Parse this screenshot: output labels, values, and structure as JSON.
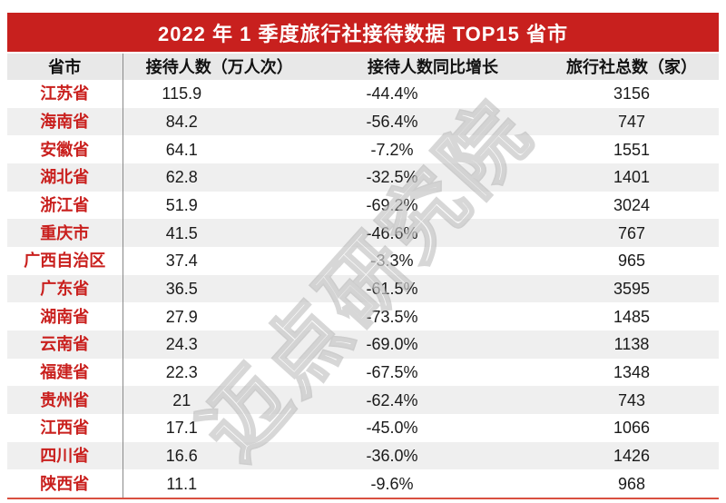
{
  "title": "2022 年 1 季度旅行社接待数据 TOP15 省市",
  "watermark": "迈点研究院",
  "colors": {
    "header_bar_red": "#c8201e",
    "province_text_red": "#c9201e",
    "bottom_line_red": "#d94f3f",
    "header_row_bg": "#e8e8e8",
    "stripe_row_bg": "#efefef",
    "divider_gray": "#8a8a8a",
    "value_text": "#1a1a1a"
  },
  "table": {
    "columns": [
      "省市",
      "接待人数（万人次）",
      "接待人数同比增长",
      "旅行社总数（家）"
    ],
    "rows": [
      [
        "江苏省",
        "115.9",
        "-44.4%",
        "3156"
      ],
      [
        "海南省",
        "84.2",
        "-56.4%",
        "747"
      ],
      [
        "安徽省",
        "64.1",
        "-7.2%",
        "1551"
      ],
      [
        "湖北省",
        "62.8",
        "-32.5%",
        "1401"
      ],
      [
        "浙江省",
        "51.9",
        "-69.2%",
        "3024"
      ],
      [
        "重庆市",
        "41.5",
        "-46.6%",
        "767"
      ],
      [
        "广西自治区",
        "37.4",
        "-3.3%",
        "965"
      ],
      [
        "广东省",
        "36.5",
        "-61.5%",
        "3595"
      ],
      [
        "湖南省",
        "27.9",
        "-73.5%",
        "1485"
      ],
      [
        "云南省",
        "24.3",
        "-69.0%",
        "1138"
      ],
      [
        "福建省",
        "22.3",
        "-67.5%",
        "1348"
      ],
      [
        "贵州省",
        "21",
        "-62.4%",
        "743"
      ],
      [
        "江西省",
        "17.1",
        "-45.0%",
        "1066"
      ],
      [
        "四川省",
        "16.6",
        "-36.0%",
        "1426"
      ],
      [
        "陕西省",
        "11.1",
        "-9.6%",
        "968"
      ]
    ]
  },
  "chart_data": {
    "type": "table",
    "title": "2022 年 1 季度旅行社接待数据 TOP15 省市",
    "columns": [
      "省市",
      "接待人数（万人次）",
      "接待人数同比增长",
      "旅行社总数（家）"
    ],
    "categories": [
      "江苏省",
      "海南省",
      "安徽省",
      "湖北省",
      "浙江省",
      "重庆市",
      "广西自治区",
      "广东省",
      "湖南省",
      "云南省",
      "福建省",
      "贵州省",
      "江西省",
      "四川省",
      "陕西省"
    ],
    "series": [
      {
        "name": "接待人数（万人次）",
        "values": [
          115.9,
          84.2,
          64.1,
          62.8,
          51.9,
          41.5,
          37.4,
          36.5,
          27.9,
          24.3,
          22.3,
          21,
          17.1,
          16.6,
          11.1
        ]
      },
      {
        "name": "接待人数同比增长(%)",
        "values": [
          -44.4,
          -56.4,
          -7.2,
          -32.5,
          -69.2,
          -46.6,
          -3.3,
          -61.5,
          -73.5,
          -69.0,
          -67.5,
          -62.4,
          -45.0,
          -36.0,
          -9.6
        ]
      },
      {
        "name": "旅行社总数（家）",
        "values": [
          3156,
          747,
          1551,
          1401,
          3024,
          767,
          965,
          3595,
          1485,
          1138,
          1348,
          743,
          1066,
          1426,
          968
        ]
      }
    ],
    "watermark": "迈点研究院"
  }
}
